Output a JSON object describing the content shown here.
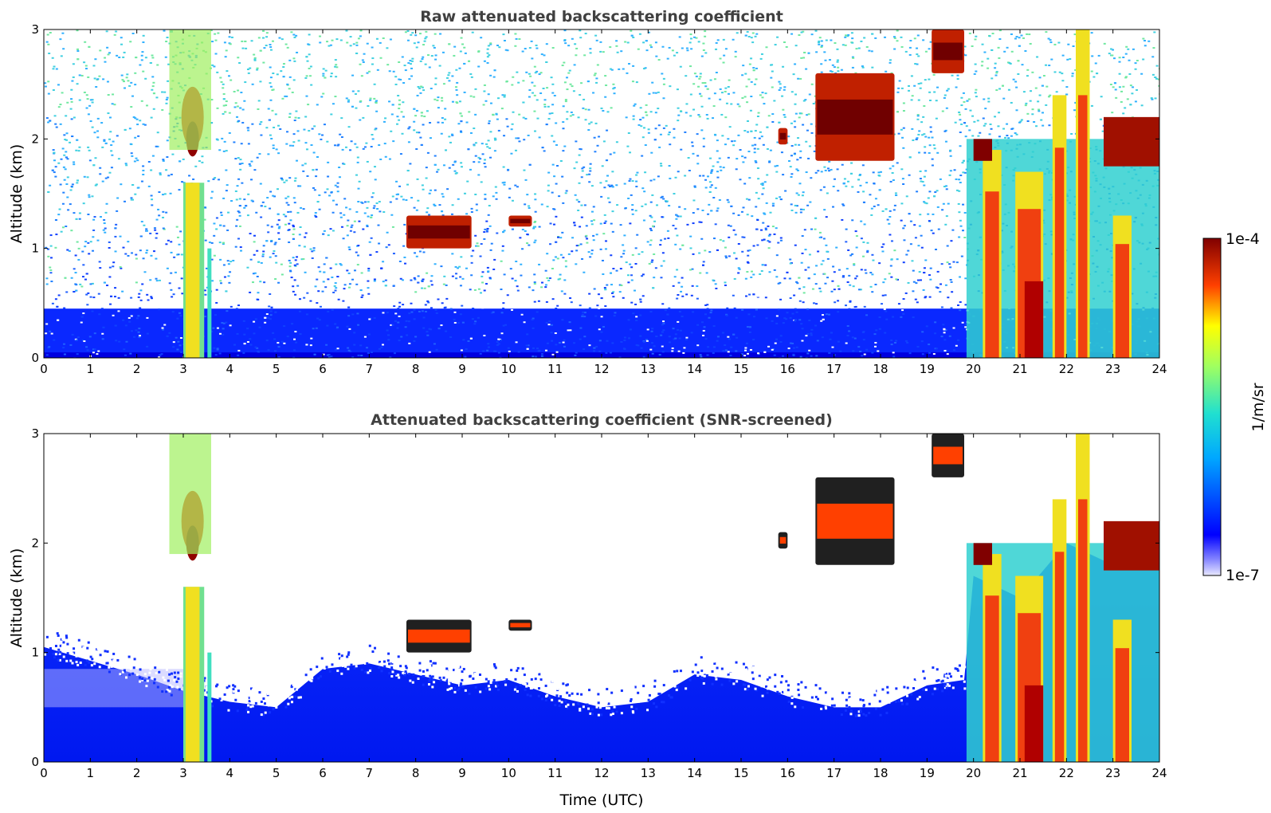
{
  "chart_data": [
    {
      "type": "heatmap",
      "title": "Raw attenuated backscattering coefficient",
      "xlabel": "",
      "ylabel": "Altitude (km)",
      "xlim": [
        0,
        24
      ],
      "ylim": [
        0,
        3
      ],
      "xticks": [
        "0",
        "1",
        "2",
        "3",
        "4",
        "5",
        "6",
        "7",
        "8",
        "9",
        "10",
        "11",
        "12",
        "13",
        "14",
        "15",
        "16",
        "17",
        "18",
        "19",
        "20",
        "21",
        "22",
        "23",
        "24"
      ],
      "yticks": [
        "0",
        "1",
        "2",
        "3"
      ],
      "features": [
        {
          "time": [
            3.0,
            3.6
          ],
          "alt": [
            0,
            3.0
          ],
          "level": "high",
          "desc_text": ""
        },
        {
          "time": [
            7.8,
            9.2
          ],
          "alt": [
            1.0,
            1.3
          ],
          "level": "high",
          "desc_text": ""
        },
        {
          "time": [
            10.0,
            10.5
          ],
          "alt": [
            1.2,
            1.3
          ],
          "level": "high",
          "desc_text": ""
        },
        {
          "time": [
            15.8,
            16.0
          ],
          "alt": [
            1.95,
            2.1
          ],
          "level": "high",
          "desc_text": ""
        },
        {
          "time": [
            16.6,
            18.3
          ],
          "alt": [
            1.8,
            2.6
          ],
          "level": "high",
          "desc_text": ""
        },
        {
          "time": [
            19.1,
            19.8
          ],
          "alt": [
            2.6,
            3.0
          ],
          "level": "high",
          "desc_text": ""
        },
        {
          "time": [
            19.8,
            24.0
          ],
          "alt": [
            0,
            3.0
          ],
          "level": "high",
          "desc_text": ""
        }
      ]
    },
    {
      "type": "heatmap",
      "title": "Attenuated backscattering coefficient (SNR-screened)",
      "xlabel": "Time (UTC)",
      "ylabel": "Altitude (km)",
      "xlim": [
        0,
        24
      ],
      "ylim": [
        0,
        3
      ],
      "xticks": [
        "0",
        "1",
        "2",
        "3",
        "4",
        "5",
        "6",
        "7",
        "8",
        "9",
        "10",
        "11",
        "12",
        "13",
        "14",
        "15",
        "16",
        "17",
        "18",
        "19",
        "20",
        "21",
        "22",
        "23",
        "24"
      ],
      "yticks": [
        "0",
        "1",
        "2",
        "3"
      ],
      "boundary_layer_top_km": [
        [
          0,
          1.05
        ],
        [
          2,
          0.8
        ],
        [
          3,
          0.65
        ],
        [
          4,
          0.55
        ],
        [
          5,
          0.5
        ],
        [
          6,
          0.85
        ],
        [
          7,
          0.9
        ],
        [
          8,
          0.8
        ],
        [
          9,
          0.7
        ],
        [
          10,
          0.75
        ],
        [
          11,
          0.6
        ],
        [
          12,
          0.5
        ],
        [
          13,
          0.55
        ],
        [
          14,
          0.8
        ],
        [
          15,
          0.75
        ],
        [
          16,
          0.6
        ],
        [
          17,
          0.5
        ],
        [
          18,
          0.5
        ],
        [
          19,
          0.7
        ],
        [
          19.8,
          0.75
        ],
        [
          20,
          1.7
        ],
        [
          21,
          1.5
        ],
        [
          22,
          2.0
        ],
        [
          23,
          1.8
        ],
        [
          24,
          2.2
        ]
      ]
    }
  ],
  "colorbar": {
    "label": "1/m/sr",
    "max_label": "1e-4",
    "min_label": "1e-7",
    "scale": "log",
    "colormap": "jet"
  },
  "colors": {
    "title_gray": "#404040",
    "low": "#0000ff",
    "high": "#800000"
  }
}
